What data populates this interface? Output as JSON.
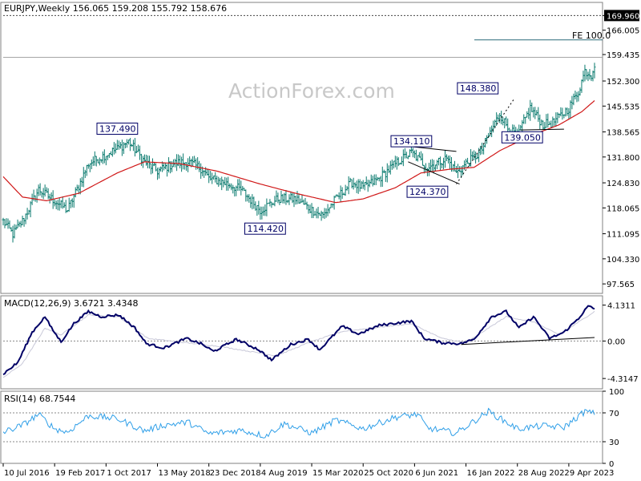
{
  "watermark": "ActionForex.com",
  "chart_data": [
    {
      "type": "bar",
      "panel": "price",
      "title": "EURJPY,Weekly  156.065 159.208 155.792 158.676",
      "ohlc_last": {
        "open": 156.065,
        "high": 159.208,
        "low": 155.792,
        "close": 158.676
      },
      "ylim": [
        95.0,
        173.5
      ],
      "y_ticks": [
        "169.960",
        "166.005",
        "159.435",
        "152.300",
        "145.535",
        "138.565",
        "131.800",
        "124.830",
        "118.065",
        "111.095",
        "104.330",
        "97.565"
      ],
      "y_tick_values": [
        169.96,
        166.005,
        159.435,
        152.3,
        145.535,
        138.565,
        131.8,
        124.83,
        118.065,
        111.095,
        104.33,
        97.565
      ],
      "current_price_label": "158.676",
      "current_price": 158.676,
      "fe_label": "FE 100.0",
      "fe_level": 163.4,
      "target_level": 169.96,
      "price_labels": [
        {
          "text": "137.490",
          "date": "2017-11-19",
          "value": 137.49
        },
        {
          "text": "114.420",
          "date": "2019-08-25",
          "value": 114.42
        },
        {
          "text": "134.110",
          "date": "2021-05-23",
          "value": 134.11
        },
        {
          "text": "124.370",
          "date": "2021-08-01",
          "value": 124.37
        },
        {
          "text": "148.380",
          "date": "2022-06-12",
          "value": 148.38
        },
        {
          "text": "139.050",
          "date": "2022-09-18",
          "value": 139.05
        }
      ],
      "anchors": [
        [
          "2016-07-10",
          114.5
        ],
        [
          "2016-08-21",
          111.0
        ],
        [
          "2016-10-02",
          114.5
        ],
        [
          "2016-12-11",
          123.0
        ],
        [
          "2017-02-19",
          120.0
        ],
        [
          "2017-04-16",
          117.5
        ],
        [
          "2017-06-04",
          124.0
        ],
        [
          "2017-07-16",
          130.0
        ],
        [
          "2017-10-01",
          132.5
        ],
        [
          "2017-11-19",
          134.0
        ],
        [
          "2018-01-07",
          136.0
        ],
        [
          "2018-03-18",
          130.5
        ],
        [
          "2018-05-13",
          128.0
        ],
        [
          "2018-07-22",
          130.0
        ],
        [
          "2018-09-23",
          130.5
        ],
        [
          "2018-11-25",
          128.5
        ],
        [
          "2018-12-23",
          126.0
        ],
        [
          "2019-02-24",
          125.0
        ],
        [
          "2019-05-12",
          123.0
        ],
        [
          "2019-08-04",
          117.5
        ],
        [
          "2019-10-20",
          120.5
        ],
        [
          "2020-01-05",
          120.5
        ],
        [
          "2020-03-15",
          117.5
        ],
        [
          "2020-05-03",
          116.0
        ],
        [
          "2020-06-28",
          120.5
        ],
        [
          "2020-09-06",
          125.0
        ],
        [
          "2020-10-25",
          123.5
        ],
        [
          "2021-01-03",
          126.0
        ],
        [
          "2021-03-14",
          130.0
        ],
        [
          "2021-05-23",
          133.0
        ],
        [
          "2021-08-01",
          129.0
        ],
        [
          "2021-10-24",
          131.5
        ],
        [
          "2021-12-05",
          127.5
        ],
        [
          "2022-01-16",
          130.0
        ],
        [
          "2022-03-20",
          133.0
        ],
        [
          "2022-04-24",
          137.5
        ],
        [
          "2022-06-12",
          143.5
        ],
        [
          "2022-07-24",
          139.0
        ],
        [
          "2022-08-28",
          137.5
        ],
        [
          "2022-10-23",
          145.0
        ],
        [
          "2022-12-18",
          140.5
        ],
        [
          "2023-01-29",
          141.0
        ],
        [
          "2023-04-09",
          145.0
        ],
        [
          "2023-05-21",
          149.5
        ],
        [
          "2023-06-18",
          155.0
        ],
        [
          "2023-07-16",
          154.0
        ],
        [
          "2023-07-30",
          157.0
        ]
      ],
      "ma_anchors": [
        [
          "2016-07-10",
          126.5
        ],
        [
          "2016-10-02",
          121.0
        ],
        [
          "2017-01-15",
          120.0
        ],
        [
          "2017-06-04",
          122.0
        ],
        [
          "2017-11-19",
          127.5
        ],
        [
          "2018-03-18",
          130.5
        ],
        [
          "2018-08-19",
          130.0
        ],
        [
          "2019-01-27",
          128.0
        ],
        [
          "2019-08-04",
          124.5
        ],
        [
          "2020-01-05",
          122.0
        ],
        [
          "2020-06-28",
          119.5
        ],
        [
          "2020-10-25",
          120.5
        ],
        [
          "2021-03-14",
          123.5
        ],
        [
          "2021-07-04",
          127.5
        ],
        [
          "2021-11-07",
          128.5
        ],
        [
          "2022-02-20",
          129.0
        ],
        [
          "2022-06-12",
          133.5
        ],
        [
          "2022-10-23",
          137.5
        ],
        [
          "2023-02-26",
          140.5
        ],
        [
          "2023-06-04",
          144.0
        ],
        [
          "2023-07-30",
          147.0
        ]
      ],
      "trendlines": [
        {
          "name": "upper",
          "from": [
            "2021-05-23",
            134.6
          ],
          "to": [
            "2021-12-05",
            133.3
          ]
        },
        {
          "name": "lower",
          "from": [
            "2021-05-09",
            130.5
          ],
          "to": [
            "2021-12-19",
            124.5
          ]
        },
        {
          "name": "rising",
          "from": [
            "2021-12-05",
            124.5
          ],
          "to": [
            "2022-08-14",
            147.5
          ],
          "dotted": true
        },
        {
          "name": "base",
          "from": [
            "2022-09-11",
            139.1
          ],
          "to": [
            "2023-03-19",
            139.3
          ]
        }
      ]
    },
    {
      "type": "line",
      "panel": "macd",
      "title": "MACD(12,26,9) 3.6721 3.4348",
      "macd": 3.6721,
      "signal": 3.4348,
      "ylim": [
        -5.5,
        5.2
      ],
      "y_ticks": [
        "4.1311",
        "0.00",
        "-4.3147"
      ],
      "y_tick_values": [
        4.1311,
        0.0,
        -4.3147
      ],
      "macd_anchors": [
        [
          "2016-07-10",
          -3.8
        ],
        [
          "2016-09-11",
          -2.5
        ],
        [
          "2016-11-13",
          1.0
        ],
        [
          "2017-01-08",
          2.8
        ],
        [
          "2017-02-05",
          1.5
        ],
        [
          "2017-03-19",
          -0.1
        ],
        [
          "2017-05-14",
          2.0
        ],
        [
          "2017-07-16",
          3.4
        ],
        [
          "2017-09-10",
          2.8
        ],
        [
          "2017-11-26",
          3.0
        ],
        [
          "2018-02-04",
          1.5
        ],
        [
          "2018-03-25",
          -0.3
        ],
        [
          "2018-06-10",
          -0.8
        ],
        [
          "2018-09-16",
          0.3
        ],
        [
          "2018-11-18",
          -0.3
        ],
        [
          "2019-01-13",
          -1.2
        ],
        [
          "2019-04-21",
          0.2
        ],
        [
          "2019-07-28",
          -1.0
        ],
        [
          "2019-09-22",
          -2.2
        ],
        [
          "2019-12-15",
          -0.4
        ],
        [
          "2020-03-01",
          0.2
        ],
        [
          "2020-04-19",
          -1.0
        ],
        [
          "2020-07-26",
          1.7
        ],
        [
          "2020-10-04",
          0.8
        ],
        [
          "2021-01-03",
          1.8
        ],
        [
          "2021-05-23",
          2.3
        ],
        [
          "2021-07-18",
          0.3
        ],
        [
          "2021-10-03",
          -0.2
        ],
        [
          "2021-12-26",
          -0.3
        ],
        [
          "2022-02-20",
          0.2
        ],
        [
          "2022-05-08",
          2.8
        ],
        [
          "2022-07-10",
          3.4
        ],
        [
          "2022-09-04",
          1.5
        ],
        [
          "2022-11-06",
          2.8
        ],
        [
          "2023-01-15",
          0.3
        ],
        [
          "2023-03-19",
          1.0
        ],
        [
          "2023-05-21",
          2.6
        ],
        [
          "2023-07-02",
          4.0
        ],
        [
          "2023-07-30",
          3.7
        ]
      ],
      "signal_anchors": [
        [
          "2016-07-10",
          -4.2
        ],
        [
          "2016-10-02",
          -2.6
        ],
        [
          "2017-01-08",
          1.5
        ],
        [
          "2017-03-19",
          0.7
        ],
        [
          "2017-07-16",
          3.0
        ],
        [
          "2017-11-26",
          2.8
        ],
        [
          "2018-04-01",
          0.3
        ],
        [
          "2018-09-16",
          -0.2
        ],
        [
          "2019-02-03",
          -0.6
        ],
        [
          "2019-10-13",
          -1.7
        ],
        [
          "2020-03-01",
          -0.2
        ],
        [
          "2020-07-26",
          1.1
        ],
        [
          "2021-05-23",
          2.0
        ],
        [
          "2021-10-03",
          0.3
        ],
        [
          "2022-01-16",
          -0.2
        ],
        [
          "2022-07-10",
          2.8
        ],
        [
          "2022-11-06",
          2.2
        ],
        [
          "2023-02-26",
          0.7
        ],
        [
          "2023-07-30",
          3.4
        ]
      ],
      "trendline": {
        "from": [
          "2021-12-26",
          -0.4
        ],
        "to": [
          "2023-07-30",
          0.4
        ]
      }
    },
    {
      "type": "line",
      "panel": "rsi",
      "title": "RSI(14) 68.7544",
      "rsi": 68.7544,
      "ylim": [
        0,
        100
      ],
      "y_ticks": [
        "100",
        "70",
        "30",
        "0"
      ],
      "y_tick_values": [
        100,
        70,
        30,
        0
      ],
      "rsi_anchors": [
        [
          "2016-07-10",
          43
        ],
        [
          "2016-10-02",
          53
        ],
        [
          "2016-12-11",
          68
        ],
        [
          "2017-02-19",
          48
        ],
        [
          "2017-04-16",
          43
        ],
        [
          "2017-07-16",
          66
        ],
        [
          "2017-11-19",
          62
        ],
        [
          "2018-03-18",
          45
        ],
        [
          "2018-06-10",
          53
        ],
        [
          "2018-09-23",
          57
        ],
        [
          "2018-12-23",
          41
        ],
        [
          "2019-05-12",
          46
        ],
        [
          "2019-08-25",
          38
        ],
        [
          "2019-11-17",
          55
        ],
        [
          "2020-03-15",
          42
        ],
        [
          "2020-06-28",
          60
        ],
        [
          "2020-10-25",
          48
        ],
        [
          "2021-03-14",
          64
        ],
        [
          "2021-06-20",
          68
        ],
        [
          "2021-08-01",
          49
        ],
        [
          "2021-12-05",
          42
        ],
        [
          "2022-04-24",
          72
        ],
        [
          "2022-08-28",
          48
        ],
        [
          "2022-12-18",
          52
        ],
        [
          "2023-03-19",
          50
        ],
        [
          "2023-06-18",
          72
        ],
        [
          "2023-07-30",
          69
        ]
      ],
      "guide_levels": [
        70,
        30
      ]
    }
  ],
  "x_axis": {
    "labels": [
      "10 Jul 2016",
      "19 Feb 2017",
      "1 Oct 2017",
      "13 May 2018",
      "23 Dec 2018",
      "4 Aug 2019",
      "15 Mar 2020",
      "25 Oct 2020",
      "6 Jun 2021",
      "16 Jan 2022",
      "28 Aug 2022",
      "9 Apr 2023"
    ],
    "dates": [
      "2016-07-10",
      "2017-02-19",
      "2017-10-01",
      "2018-05-13",
      "2018-12-23",
      "2019-08-04",
      "2020-03-15",
      "2020-10-25",
      "2021-06-06",
      "2022-01-16",
      "2022-08-28",
      "2023-04-09"
    ],
    "start": "2016-07-10",
    "end": "2023-08-06"
  },
  "colors": {
    "background": "#ffffff",
    "bars": "#0a7a6e",
    "moving_average": "#d01818",
    "macd": "#000066",
    "signal": "#c8c8d8",
    "rsi": "#2f9fe8",
    "trendline": "#000000",
    "fe_line": "#2a6a78",
    "grid": "#888888",
    "label_border": "#000066"
  }
}
